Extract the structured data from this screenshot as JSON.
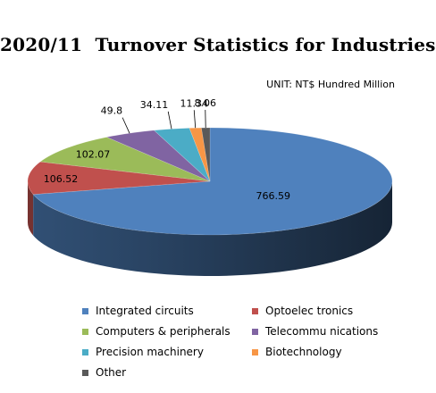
{
  "chart_data": {
    "type": "pie",
    "title": "2020/11  Turnover Statistics for Industries",
    "subtitle": "UNIT: NT$ Hundred Million",
    "categories": [
      "Integrated circuits",
      "Optoelec tronics",
      "Computers & peripherals",
      "Telecommu nications",
      "Precision machinery",
      "Biotechnology",
      "Other"
    ],
    "values": [
      766.59,
      106.52,
      102.07,
      49.8,
      34.11,
      11.34,
      8.06
    ],
    "value_labels": [
      "766.59",
      "106.52",
      "102.07",
      "49.8",
      "34.11",
      "11.34",
      "8.06"
    ],
    "colors": [
      "#4F81BD",
      "#C0504D",
      "#9BBB59",
      "#8064A2",
      "#4BACC6",
      "#F79646",
      "#595959"
    ],
    "style": "3d",
    "legend_position": "bottom"
  }
}
